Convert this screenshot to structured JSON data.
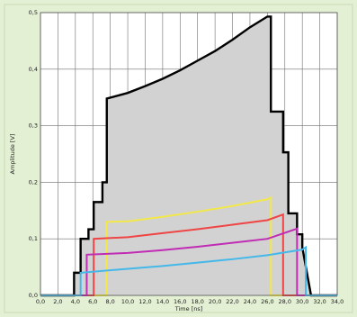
{
  "chart_data": {
    "type": "line",
    "title": "",
    "xlabel": "Time [ns]",
    "ylabel": "Amplitude [V]",
    "xlim": [
      0,
      34
    ],
    "ylim": [
      0,
      0.5
    ],
    "x_ticks": [
      0,
      2,
      4,
      6,
      8,
      10,
      12,
      14,
      16,
      18,
      20,
      22,
      24,
      26,
      28,
      30,
      32,
      34
    ],
    "x_tick_labels": [
      "0,0",
      "2,0",
      "4,0",
      "6,0",
      "8,0",
      "10,0",
      "12,0",
      "14,0",
      "16,0",
      "18,0",
      "20,0",
      "22,0",
      "24,0",
      "26,0",
      "28,0",
      "30,0",
      "32,0",
      "34,0"
    ],
    "y_ticks": [
      0,
      0.1,
      0.2,
      0.3,
      0.4,
      0.5
    ],
    "y_tick_labels": [
      "0,0",
      "0,1",
      "0,2",
      "0,3",
      "0,4",
      "0,5"
    ],
    "grid": true,
    "legend": "none",
    "colors": {
      "page_background": "#e3f0d3",
      "plot_background": "#ffffff",
      "grid": "#6f6f6f",
      "sum_fill": "#d2d2d2"
    },
    "series": [
      {
        "color": "#000000",
        "filled": true,
        "x": [
          0,
          3.85,
          3.85,
          4.6,
          4.6,
          5.5,
          5.5,
          6.1,
          6.1,
          7.1,
          7.1,
          7.6,
          7.6,
          10,
          12,
          14,
          16,
          18,
          20,
          22,
          24,
          26,
          26.4,
          26.4,
          27.8,
          27.8,
          28.4,
          28.4,
          29.4,
          29.4,
          30,
          30,
          31,
          31,
          34
        ],
        "y": [
          0,
          0,
          0.04,
          0.04,
          0.1,
          0.1,
          0.117,
          0.117,
          0.165,
          0.165,
          0.2,
          0.2,
          0.348,
          0.358,
          0.37,
          0.383,
          0.398,
          0.415,
          0.432,
          0.452,
          0.474,
          0.493,
          0.493,
          0.325,
          0.325,
          0.253,
          0.253,
          0.145,
          0.145,
          0.108,
          0.108,
          0.085,
          0,
          0,
          0
        ]
      },
      {
        "color": "#f2e84a",
        "x": [
          0,
          7.6,
          7.6,
          10,
          14,
          18,
          22,
          26,
          26.4,
          26.4,
          34
        ],
        "y": [
          0,
          0,
          0.13,
          0.131,
          0.139,
          0.148,
          0.158,
          0.17,
          0.173,
          0,
          0
        ]
      },
      {
        "color": "#f04545",
        "x": [
          0,
          6.1,
          6.1,
          10,
          14,
          18,
          22,
          26,
          27.8,
          27.8,
          34
        ],
        "y": [
          0,
          0,
          0.1,
          0.103,
          0.11,
          0.117,
          0.125,
          0.133,
          0.143,
          0,
          0
        ]
      },
      {
        "color": "#c02cb4",
        "x": [
          0,
          5.3,
          5.3,
          10,
          14,
          18,
          22,
          26,
          29.4,
          29.4,
          34
        ],
        "y": [
          0,
          0,
          0.072,
          0.075,
          0.08,
          0.086,
          0.093,
          0.1,
          0.118,
          0,
          0
        ]
      },
      {
        "color": "#45b8ea",
        "x": [
          0,
          4.6,
          4.6,
          10,
          14,
          18,
          22,
          26,
          30,
          30.4,
          30.4,
          34
        ],
        "y": [
          0,
          0,
          0.04,
          0.047,
          0.052,
          0.058,
          0.064,
          0.071,
          0.081,
          0.085,
          0,
          0
        ]
      }
    ]
  }
}
